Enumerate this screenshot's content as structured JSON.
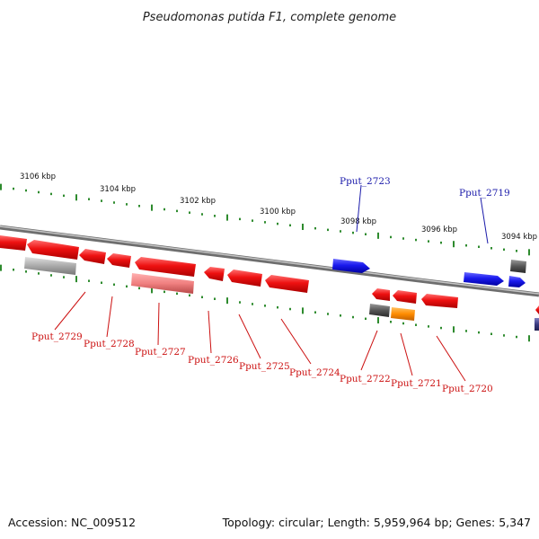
{
  "title": "Pseudomonas putida F1, complete genome",
  "footer": {
    "accession": "Accession: NC_009512",
    "summary": "Topology: circular; Length: 5,959,964 bp; Genes: 5,347"
  },
  "colors": {
    "background": "#ffffff",
    "backbone": "#8a8a8a",
    "tick": "#2e8b2e",
    "forward_gene": "#1a1aee",
    "reverse_gene": "#ee1111",
    "reverse_pseudo": "#f08080",
    "label_forward": "#1a1aaa",
    "label_reverse": "#cc1111",
    "grey_feature": "#aaaaaa",
    "dark_feature": "#555555",
    "orange_feature": "#ff8c00"
  },
  "kbp_markers": [
    "3106 kbp",
    "3104 kbp",
    "3102 kbp",
    "3100 kbp",
    "3098 kbp",
    "3096 kbp",
    "3094 kbp"
  ],
  "genes": [
    {
      "name": "Pput_2729",
      "strand": "reverse"
    },
    {
      "name": "Pput_2728",
      "strand": "reverse"
    },
    {
      "name": "Pput_2727",
      "strand": "reverse"
    },
    {
      "name": "Pput_2726",
      "strand": "reverse"
    },
    {
      "name": "Pput_2725",
      "strand": "reverse"
    },
    {
      "name": "Pput_2724",
      "strand": "reverse"
    },
    {
      "name": "Pput_2723",
      "strand": "forward"
    },
    {
      "name": "Pput_2722",
      "strand": "reverse"
    },
    {
      "name": "Pput_2721",
      "strand": "reverse"
    },
    {
      "name": "Pput_2720",
      "strand": "reverse"
    },
    {
      "name": "Pput_2719",
      "strand": "forward"
    }
  ]
}
